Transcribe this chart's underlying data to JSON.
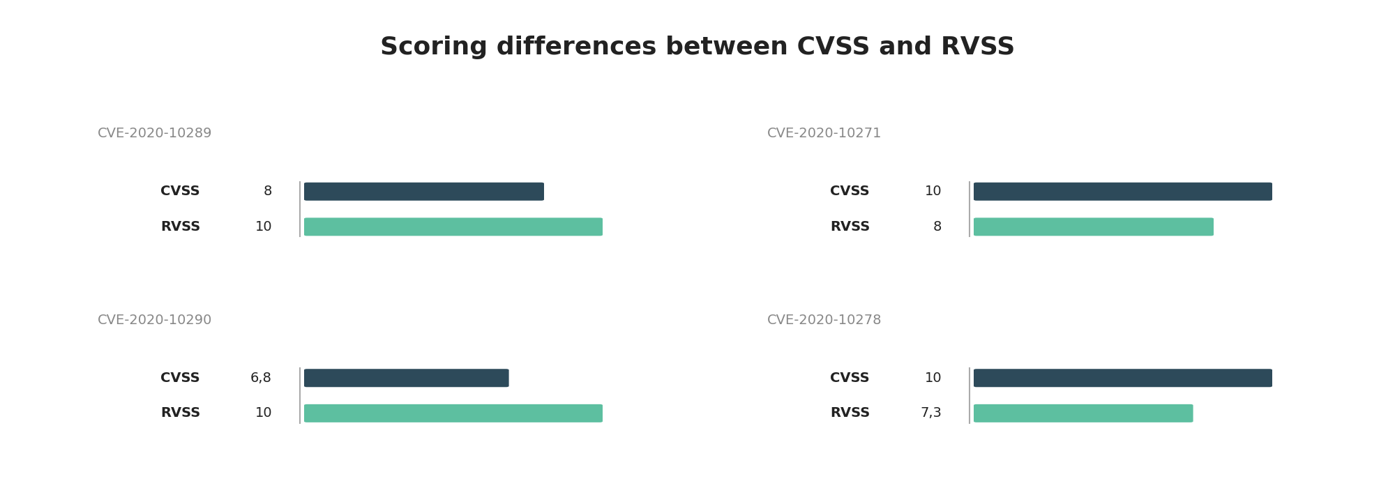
{
  "title": "Scoring differences between CVSS and RVSS",
  "title_fontsize": 26,
  "background_color": "#ffffff",
  "cvss_color": "#2d4a5a",
  "rvss_color": "#5dbfa0",
  "cve_label_color": "#888888",
  "text_color": "#222222",
  "sep_color": "#aaaaaa",
  "max_score": 10,
  "bar_height": 0.032,
  "panels": [
    {
      "cve": "CVE-2020-10289",
      "cvss_score": 8,
      "rvss_score": 10,
      "cvss_label": "8",
      "rvss_label": "10",
      "col": 0,
      "row": 0
    },
    {
      "cve": "CVE-2020-10271",
      "cvss_score": 10,
      "rvss_score": 8,
      "cvss_label": "10",
      "rvss_label": "8",
      "col": 1,
      "row": 0
    },
    {
      "cve": "CVE-2020-10290",
      "cvss_score": 6.8,
      "rvss_score": 10,
      "cvss_label": "6,8",
      "rvss_label": "10",
      "col": 0,
      "row": 1
    },
    {
      "cve": "CVE-2020-10278",
      "cvss_score": 10,
      "rvss_score": 7.3,
      "cvss_label": "10",
      "rvss_label": "7,3",
      "col": 1,
      "row": 1
    }
  ]
}
